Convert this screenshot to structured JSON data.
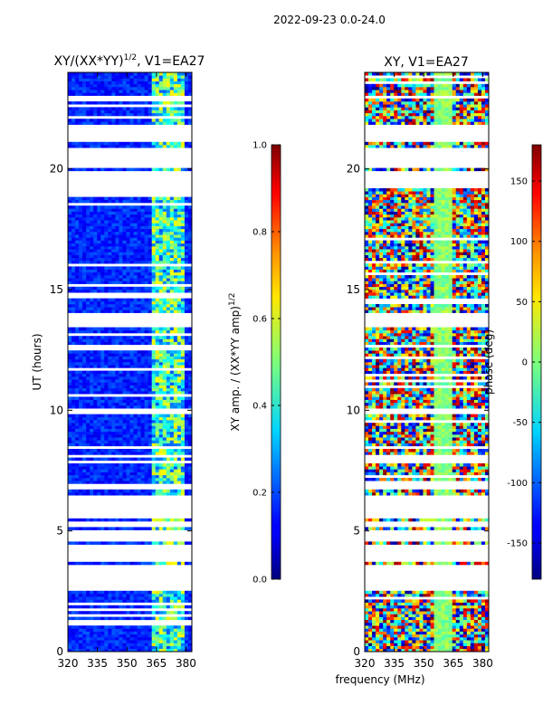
{
  "figure_title": "2022-09-23 0.0-24.0",
  "chart_data": [
    {
      "type": "heatmap",
      "title_main": "XY/(XX*YY)",
      "title_sup": "1/2",
      "title_rest": ", V1=EA27",
      "xlabel": "",
      "ylabel": "UT (hours)",
      "xlim": [
        320,
        383
      ],
      "ylim": [
        0,
        24
      ],
      "x_ticks": [
        "320",
        "335",
        "350",
        "365",
        "380"
      ],
      "y_ticks": [
        "0",
        "5",
        "10",
        "15",
        "20"
      ],
      "colorbar": {
        "label_main": "XY amp. / (XX*YY amp)",
        "label_sup": "1/2",
        "range": [
          0.0,
          1.0
        ],
        "ticks": [
          "0.0",
          "0.2",
          "0.4",
          "0.6",
          "0.8",
          "1.0"
        ]
      },
      "colormap": "jet"
    },
    {
      "type": "heatmap",
      "title_main": "XY, V1=EA27",
      "xlabel": "frequency (MHz)",
      "ylabel": "",
      "xlim": [
        320,
        383
      ],
      "ylim": [
        0,
        24
      ],
      "x_ticks": [
        "320",
        "335",
        "350",
        "365",
        "380"
      ],
      "y_ticks": [
        "0",
        "5",
        "10",
        "15",
        "20"
      ],
      "colorbar": {
        "label_main": "phase (deg)",
        "range": [
          -180,
          180
        ],
        "ticks": [
          "-150",
          "-100",
          "-50",
          "0",
          "50",
          "100",
          "150"
        ]
      },
      "colormap": "jet"
    }
  ]
}
